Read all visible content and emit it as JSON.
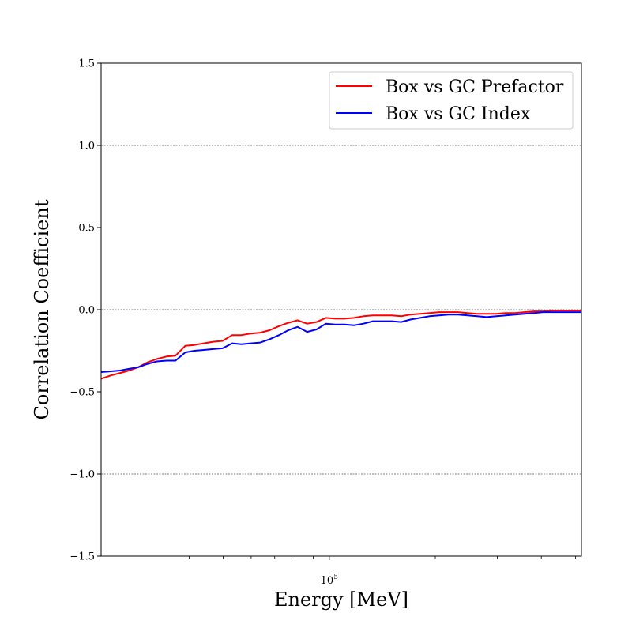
{
  "chart_data": {
    "type": "line",
    "xlabel": "Energy [MeV]",
    "ylabel": "Correlation Coefficient",
    "xscale": "log",
    "xlim": [
      22500,
      520000
    ],
    "ylim": [
      -1.5,
      1.5
    ],
    "yticks": [
      1.5,
      1.0,
      0.5,
      0.0,
      -0.5,
      -1.0,
      -1.5
    ],
    "ytick_labels": [
      "1.5",
      "1.0",
      "0.5",
      "0.0",
      "−0.5",
      "−1.0",
      "−1.5"
    ],
    "xtick_major": [
      100000
    ],
    "xtick_major_labels": [
      {
        "base": "10",
        "exp": "5"
      }
    ],
    "xtick_minor": [
      40000,
      50000,
      60000,
      70000,
      80000,
      90000,
      200000,
      300000,
      400000,
      500000
    ],
    "hlines": [
      1.0,
      0.0,
      -1.0
    ],
    "legend_position": "top-right",
    "x": [
      22500,
      24000,
      25500,
      27000,
      28700,
      30500,
      32400,
      34500,
      36600,
      39000,
      41400,
      44000,
      46800,
      49800,
      53000,
      56300,
      59900,
      63700,
      67700,
      72000,
      76500,
      81300,
      86500,
      92000,
      97800,
      104000,
      110500,
      117500,
      125000,
      133000,
      141500,
      150500,
      160000,
      170000,
      181000,
      192500,
      205000,
      218000,
      232000,
      247000,
      263000,
      280000,
      298000,
      317000,
      337000,
      358500,
      381000,
      405000,
      431000,
      458000,
      487000,
      520000
    ],
    "series": [
      {
        "name": "Box vs GC Prefactor",
        "color": "#ff0000",
        "values": [
          -0.42,
          -0.4,
          -0.385,
          -0.37,
          -0.35,
          -0.32,
          -0.3,
          -0.285,
          -0.28,
          -0.22,
          -0.215,
          -0.205,
          -0.195,
          -0.19,
          -0.155,
          -0.155,
          -0.145,
          -0.14,
          -0.125,
          -0.1,
          -0.08,
          -0.065,
          -0.085,
          -0.075,
          -0.05,
          -0.055,
          -0.055,
          -0.05,
          -0.04,
          -0.035,
          -0.035,
          -0.035,
          -0.04,
          -0.03,
          -0.025,
          -0.02,
          -0.015,
          -0.015,
          -0.015,
          -0.02,
          -0.025,
          -0.025,
          -0.025,
          -0.02,
          -0.02,
          -0.015,
          -0.01,
          -0.01,
          -0.005,
          -0.005,
          -0.005,
          -0.005
        ]
      },
      {
        "name": "Box vs GC Index",
        "color": "#0000ff",
        "values": [
          -0.38,
          -0.375,
          -0.37,
          -0.36,
          -0.35,
          -0.33,
          -0.315,
          -0.31,
          -0.31,
          -0.26,
          -0.25,
          -0.245,
          -0.24,
          -0.235,
          -0.205,
          -0.21,
          -0.205,
          -0.2,
          -0.18,
          -0.155,
          -0.125,
          -0.105,
          -0.135,
          -0.12,
          -0.085,
          -0.09,
          -0.09,
          -0.095,
          -0.085,
          -0.07,
          -0.07,
          -0.07,
          -0.075,
          -0.06,
          -0.05,
          -0.04,
          -0.035,
          -0.03,
          -0.03,
          -0.035,
          -0.04,
          -0.045,
          -0.04,
          -0.035,
          -0.03,
          -0.025,
          -0.02,
          -0.015,
          -0.015,
          -0.015,
          -0.015,
          -0.015
        ]
      }
    ]
  }
}
